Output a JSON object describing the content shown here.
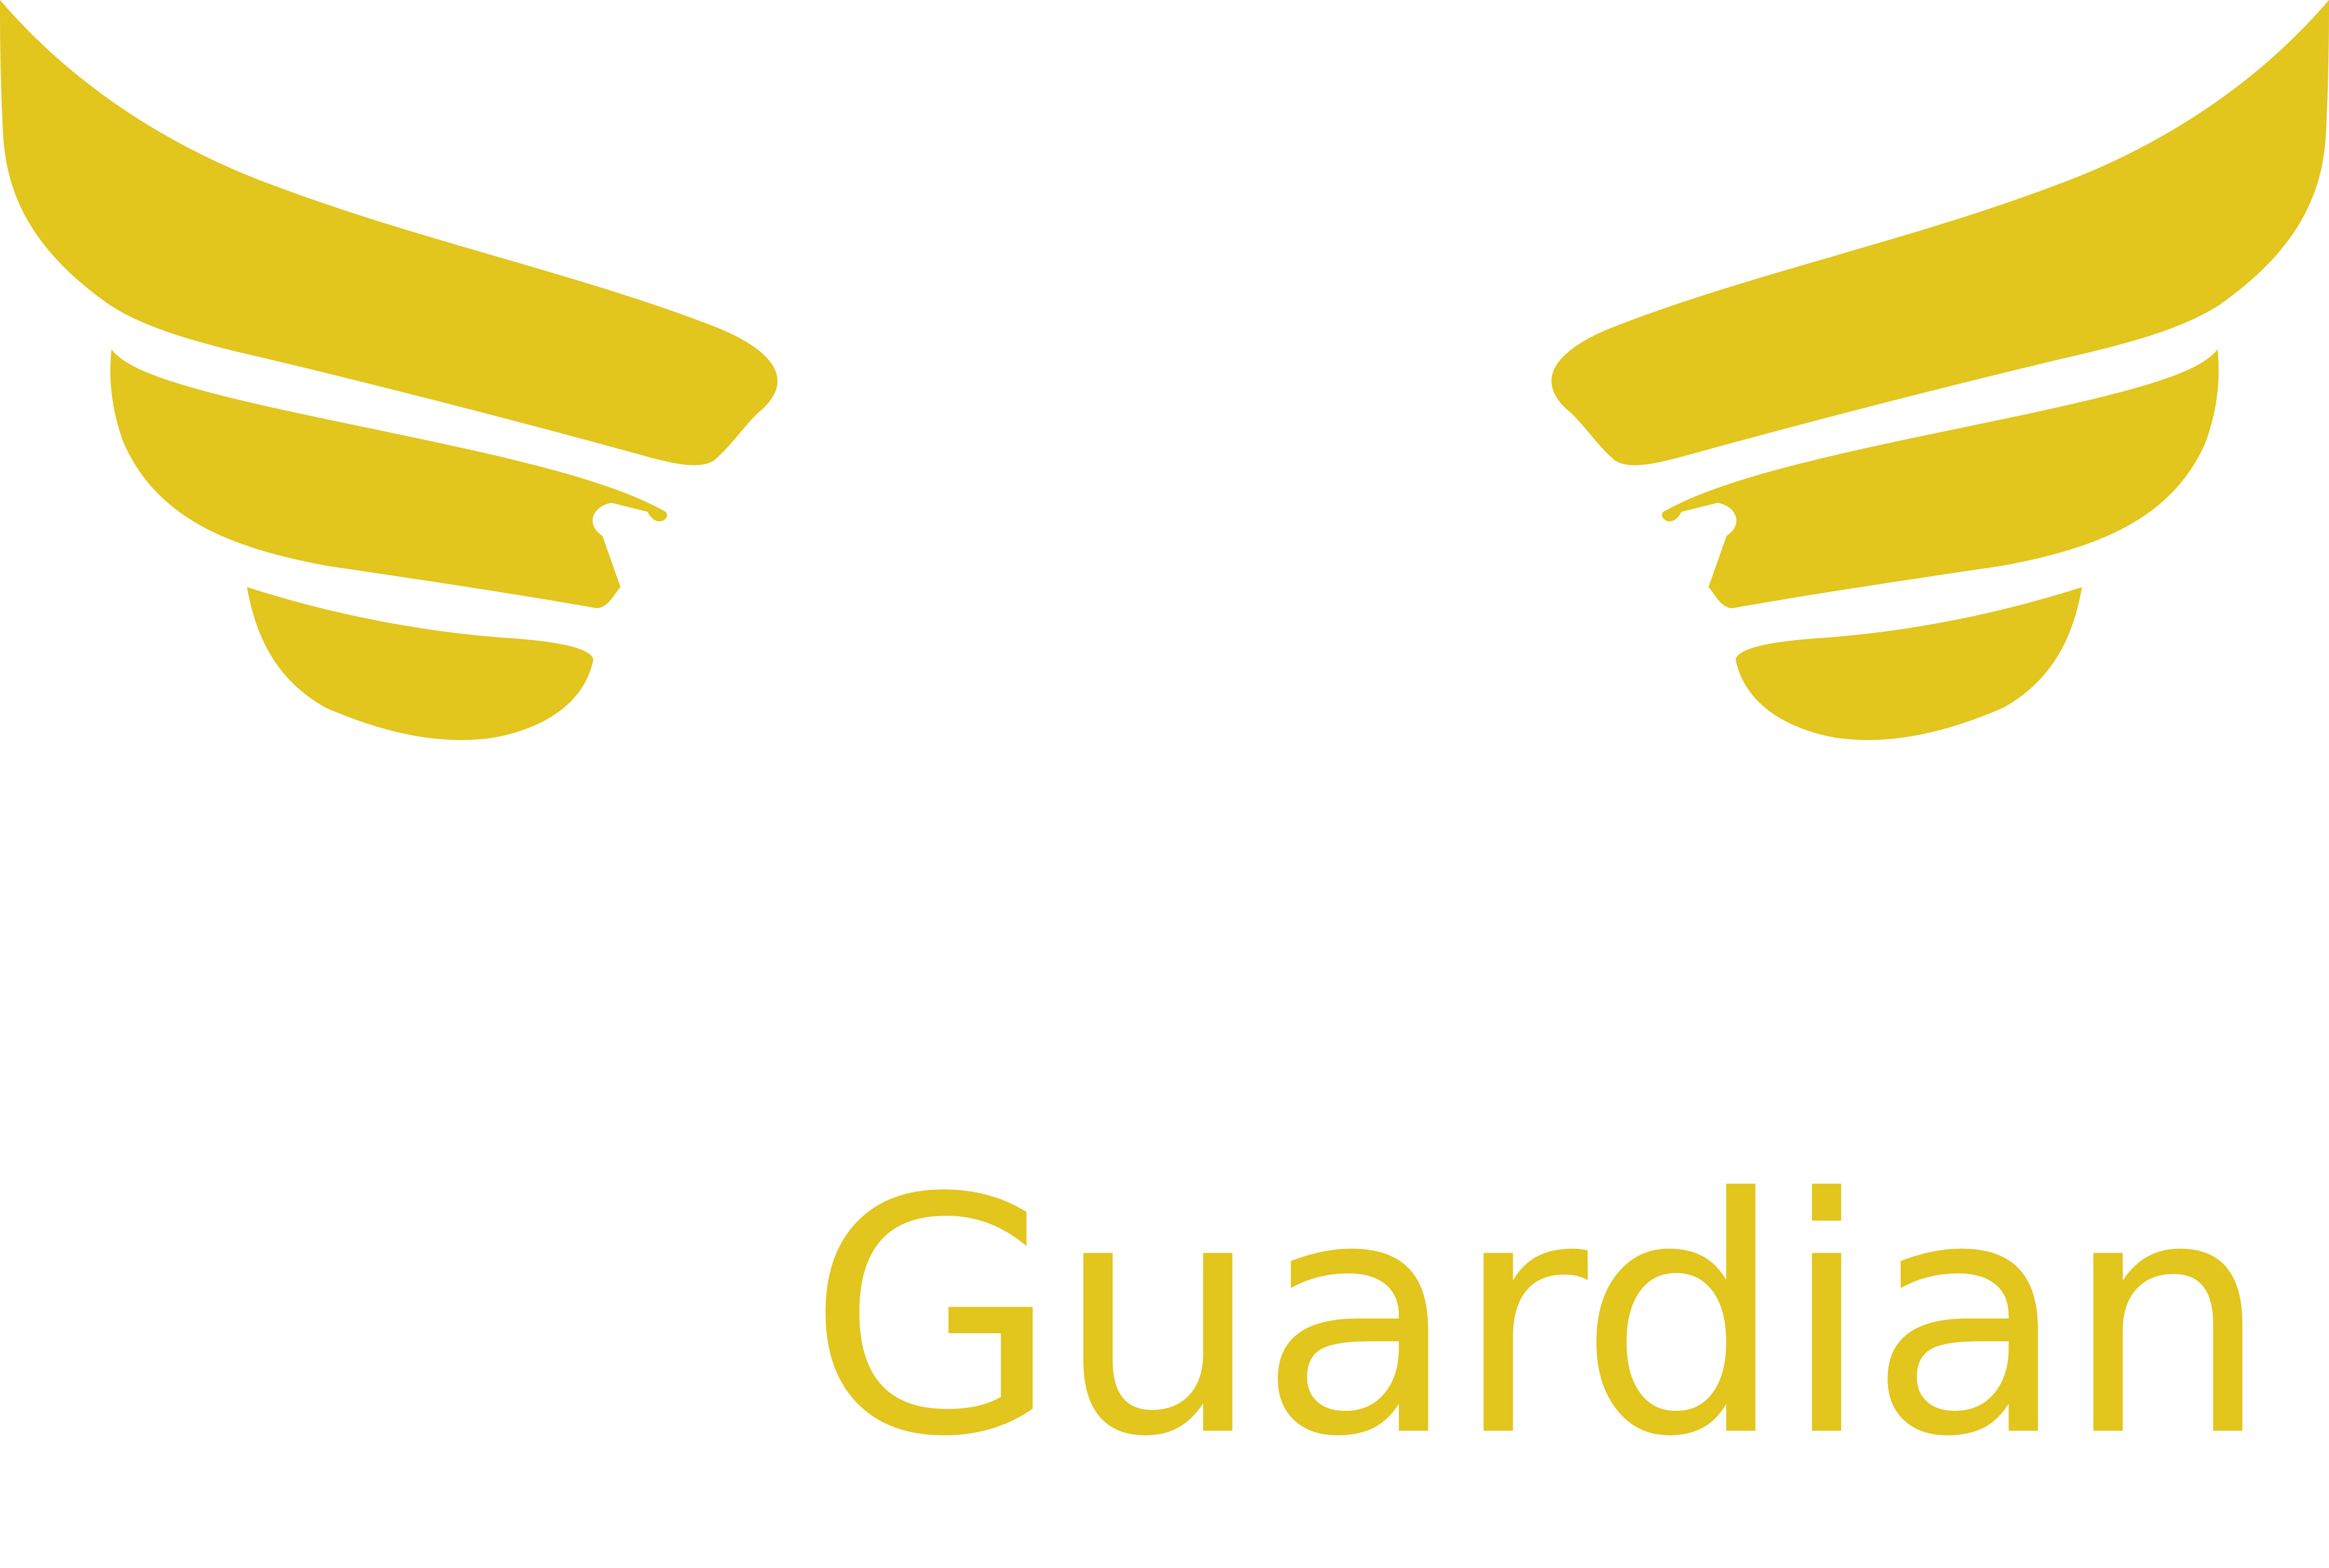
{
  "logo": {
    "wordmark": "Guardian",
    "accent_color": "#E2C51D",
    "background_color": "#FFFFFF"
  }
}
